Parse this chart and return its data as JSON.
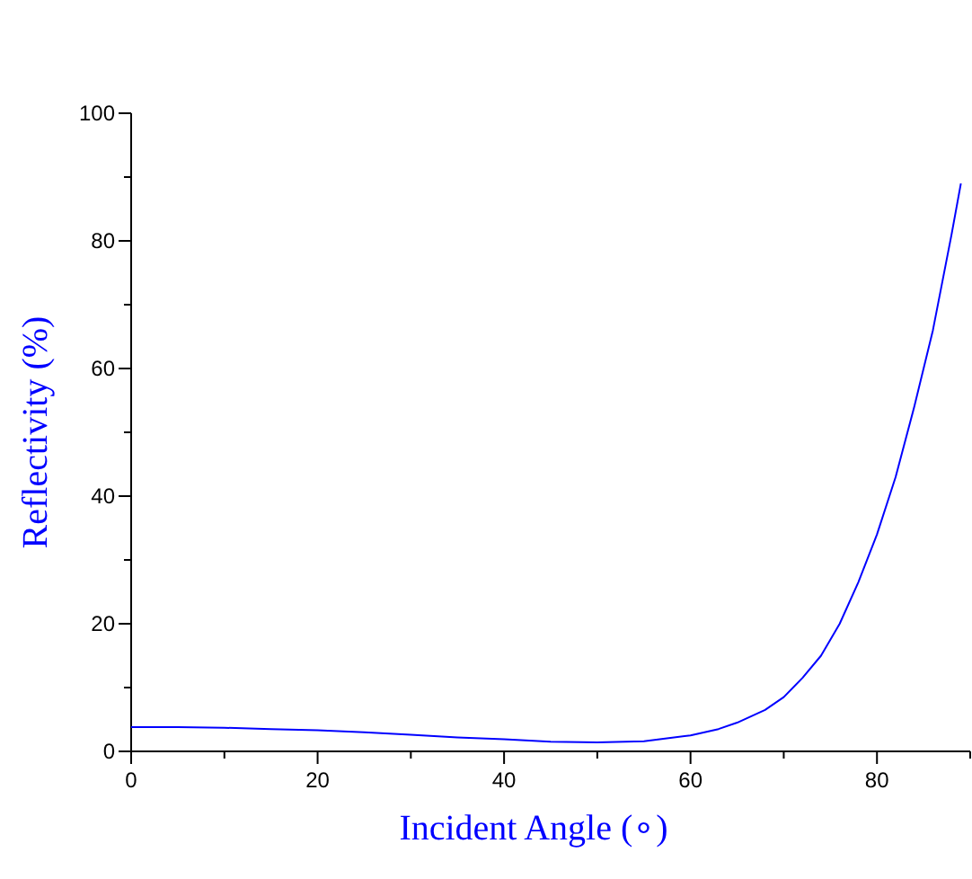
{
  "chart_data": {
    "type": "line",
    "xlabel": "Incident Angle (∘)",
    "ylabel": "Reflectivity (%)",
    "xlim": [
      0,
      90
    ],
    "ylim": [
      0,
      100
    ],
    "xticks": [
      0,
      {
        "value": 10,
        "label": null
      },
      20,
      {
        "value": 30,
        "label": null
      },
      40,
      {
        "value": 50,
        "label": null
      },
      60,
      {
        "value": 70,
        "label": null
      },
      80,
      {
        "value": 90,
        "label": null
      }
    ],
    "yticks": [
      0,
      {
        "value": 10,
        "label": null
      },
      20,
      {
        "value": 30,
        "label": null
      },
      40,
      {
        "value": 50,
        "label": null
      },
      60,
      {
        "value": 70,
        "label": null
      },
      80,
      {
        "value": 90,
        "label": null
      },
      100
    ],
    "series": [
      {
        "color": "#0000ff",
        "x": [
          0,
          5,
          10,
          15,
          20,
          25,
          30,
          35,
          40,
          45,
          50,
          55,
          60,
          63,
          65,
          68,
          70,
          72,
          74,
          76,
          78,
          80,
          82,
          84,
          86,
          88,
          89
        ],
        "values": [
          3.8,
          3.8,
          3.7,
          3.5,
          3.3,
          3.0,
          2.6,
          2.2,
          1.9,
          1.5,
          1.4,
          1.6,
          2.5,
          3.5,
          4.5,
          6.5,
          8.5,
          11.5,
          15,
          20,
          26.5,
          34,
          43,
          54,
          66,
          81,
          89
        ]
      }
    ],
    "grid": false,
    "marker": "none",
    "line_style": "solid"
  }
}
